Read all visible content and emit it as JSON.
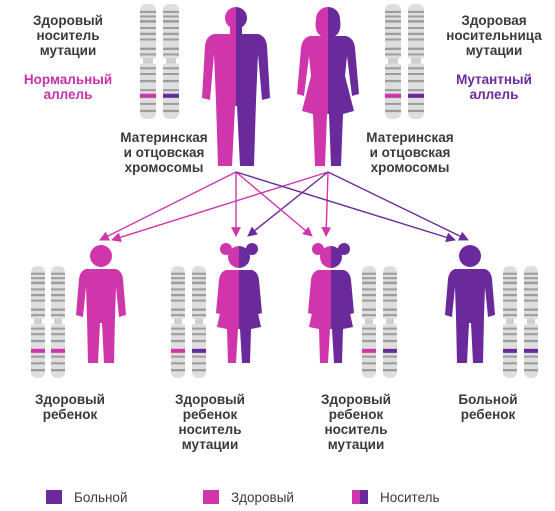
{
  "colors": {
    "affected": "#6a2a9c",
    "healthy": "#d036ac",
    "chromosome_light": "#dedede",
    "chromosome_dark": "#9c9c9c"
  },
  "parents": {
    "father_label": [
      "Здоровый",
      "носитель",
      "мутации"
    ],
    "mother_label": [
      "Здоровая",
      "носительница",
      "мутации"
    ],
    "normal_allele": [
      "Нормальный",
      "аллель"
    ],
    "mutant_allele": [
      "Мутантный",
      "аллель"
    ],
    "chromosomes_left": [
      "Материнская",
      "и отцовская",
      "хромосомы"
    ],
    "chromosomes_right": [
      "Материнская",
      "и отцовская",
      "хромосомы"
    ]
  },
  "children": [
    {
      "label": [
        "Здоровый",
        "ребенок"
      ]
    },
    {
      "label": [
        "Здоровый",
        "ребенок",
        "носитель",
        "мутации"
      ]
    },
    {
      "label": [
        "Здоровый",
        "ребенок",
        "носитель",
        "мутации"
      ]
    },
    {
      "label": [
        "Больной",
        "ребенок"
      ]
    }
  ],
  "legend": {
    "affected": "Больной",
    "healthy": "Здоровый",
    "carrier": "Носитель"
  }
}
